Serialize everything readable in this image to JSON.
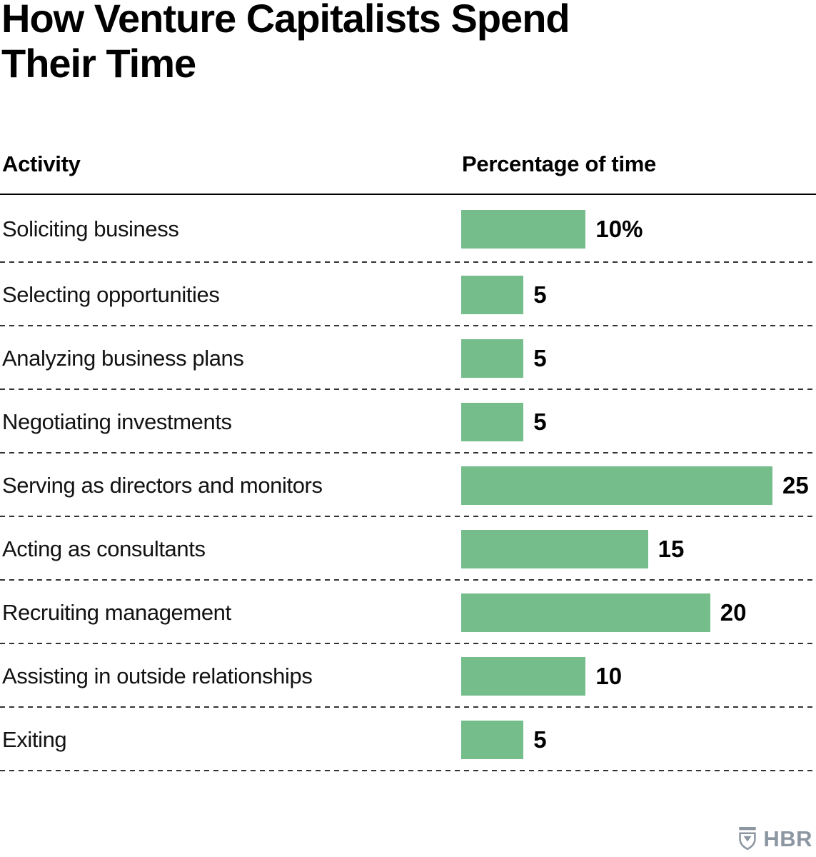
{
  "title": {
    "line1": "How Venture Capitalists Spend",
    "line2": "Their Time"
  },
  "table_headers": {
    "activity": "Activity",
    "percentage": "Percentage of time"
  },
  "chart_data": {
    "type": "bar",
    "orientation": "horizontal",
    "title": "How Venture Capitalists Spend Their Time",
    "xlabel": "Percentage of time",
    "ylabel": "Activity",
    "xlim": [
      0,
      25
    ],
    "grid": false,
    "legend": false,
    "bar_color": "#76bd8c",
    "separator_style": "dashed",
    "categories": [
      "Soliciting business",
      "Selecting opportunities",
      "Analyzing business plans",
      "Negotiating investments",
      "Serving as directors and monitors",
      "Acting as consultants",
      "Recruiting management",
      "Assisting in outside relationships",
      "Exiting"
    ],
    "values": [
      10,
      5,
      5,
      5,
      25,
      15,
      20,
      10,
      5
    ],
    "value_labels": [
      "10%",
      "5",
      "5",
      "5",
      "25",
      "15",
      "20",
      "10",
      "5"
    ]
  },
  "footer": {
    "logo_text": "HBR",
    "logo_icon": "hbr-shield-icon",
    "logo_color": "#8c97a2"
  }
}
